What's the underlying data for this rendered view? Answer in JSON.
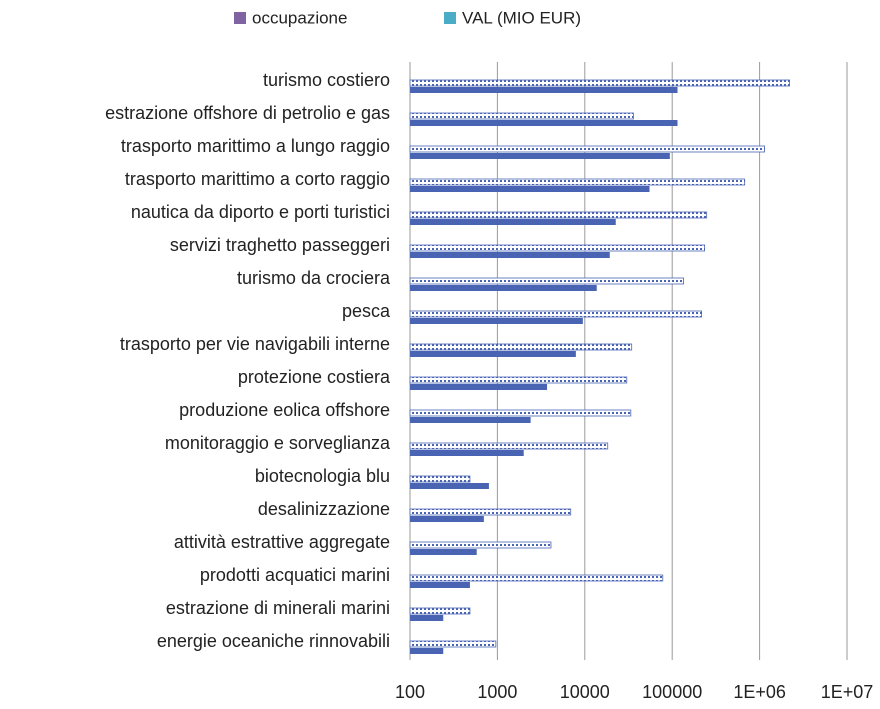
{
  "chart_data": {
    "type": "hbar",
    "log_scale": true,
    "grid": true,
    "legend": "top",
    "categories": [
      "turismo costiero",
      "estrazione offshore di petrolio e gas",
      "trasporto marittimo a lungo raggio",
      "trasporto marittimo a corto raggio",
      "nautica da diporto e porti turistici",
      "servizi traghetto passeggeri",
      "turismo da crociera",
      "pesca",
      "trasporto per vie navigabili interne",
      "protezione costiera",
      "produzione eolica offshore",
      "monitoraggio e sorveglianza",
      "biotecnologia blu",
      "desalinizzazione",
      "attività estrattive aggregate",
      "prodotti acquatici marini",
      "estrazione di minerali marini",
      "energie oceaniche rinnovabili"
    ],
    "series": [
      {
        "name": "occupazione",
        "color": "#4a64b4",
        "legend_color": "#8064a2",
        "pattern": "solid",
        "values": [
          115000,
          115000,
          94000,
          55000,
          22600,
          19300,
          13700,
          9500,
          7900,
          3700,
          2400,
          2000,
          800,
          700,
          580,
          485,
          240,
          240
        ]
      },
      {
        "name": "VAL (MIO EUR)",
        "color": "#4a64b4",
        "legend_color": "#4bacc6",
        "pattern": "hatched",
        "values": [
          2200000,
          36000,
          1140000,
          675000,
          248000,
          235000,
          135000,
          217000,
          34400,
          30200,
          33600,
          18300,
          485,
          6900,
          4100,
          78000,
          485,
          960
        ]
      }
    ],
    "xlim": [
      100,
      10000000
    ],
    "xticks": [
      100,
      1000,
      10000,
      100000,
      {
        "value": 1000000,
        "label": "1E+06"
      },
      {
        "value": 10000000,
        "label": "1E+07"
      }
    ]
  }
}
